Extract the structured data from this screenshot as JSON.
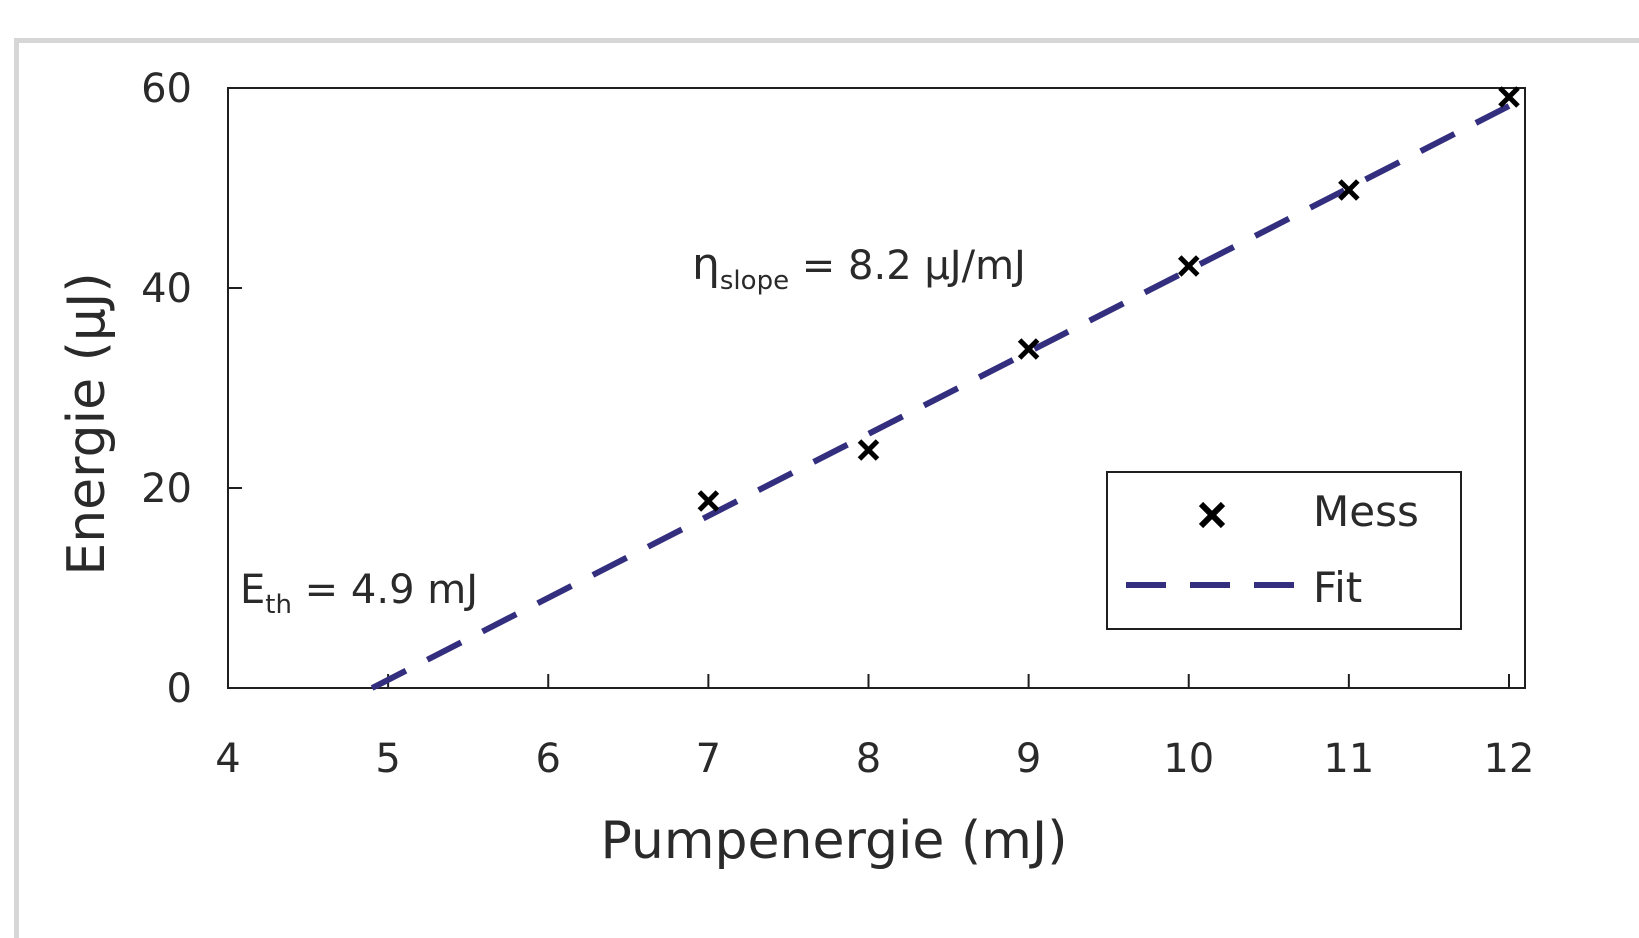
{
  "chart_data": {
    "type": "scatter",
    "xlabel": "Pumpenergie (mJ)",
    "ylabel": "Energie (µJ)",
    "xlim": [
      4,
      12.1
    ],
    "ylim": [
      0,
      60
    ],
    "xticks": [
      "4",
      "5",
      "6",
      "7",
      "8",
      "9",
      "10",
      "11",
      "12"
    ],
    "yticks": [
      "0",
      "20",
      "40",
      "60"
    ],
    "grid": false,
    "legend_position": "lower-right",
    "series": [
      {
        "name": "Mess",
        "marker": "x",
        "color": "#000000",
        "x": [
          7,
          8,
          9,
          10,
          11,
          12
        ],
        "y": [
          18.7,
          23.8,
          33.9,
          42.2,
          49.8,
          59.1
        ]
      },
      {
        "name": "Fit",
        "style": "dashed-line",
        "color": "#332f7e",
        "x": [
          4.9,
          12
        ],
        "y": [
          0,
          58.2
        ]
      }
    ],
    "annotations": {
      "slope": {
        "main": "η",
        "sub": "slope",
        "rest": " = 8.2 µJ/mJ"
      },
      "threshold": {
        "main": "E",
        "sub": "th",
        "rest": " = 4.9 mJ"
      }
    }
  }
}
